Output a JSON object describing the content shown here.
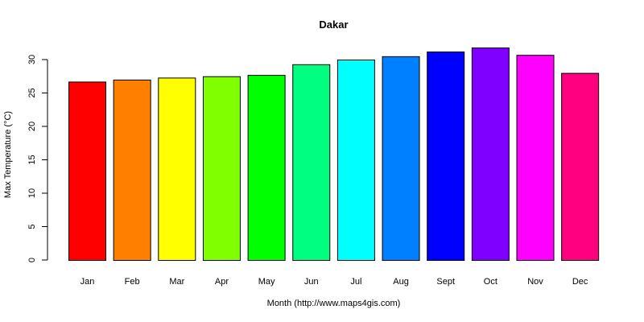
{
  "chart_data": {
    "type": "bar",
    "title": "Dakar",
    "xlabel": "Month (http://www.maps4gis.com)",
    "ylabel": "Max Temperature (°C)",
    "categories": [
      "Jan",
      "Feb",
      "Mar",
      "Apr",
      "May",
      "Jun",
      "Jul",
      "Aug",
      "Sept",
      "Oct",
      "Nov",
      "Dec"
    ],
    "values": [
      26.7,
      27.0,
      27.3,
      27.5,
      27.7,
      29.3,
      30.0,
      30.5,
      31.2,
      31.8,
      30.7,
      28.0
    ],
    "colors": [
      "#FF0000",
      "#FF8000",
      "#FFFF00",
      "#80FF00",
      "#00FF00",
      "#00FF80",
      "#00FFFF",
      "#0080FF",
      "#0000FF",
      "#8000FF",
      "#FF00FF",
      "#FF0080"
    ],
    "ylim": [
      0,
      30
    ],
    "yticks": [
      0,
      5,
      10,
      15,
      20,
      25,
      30
    ],
    "grid": false,
    "legend": null
  }
}
